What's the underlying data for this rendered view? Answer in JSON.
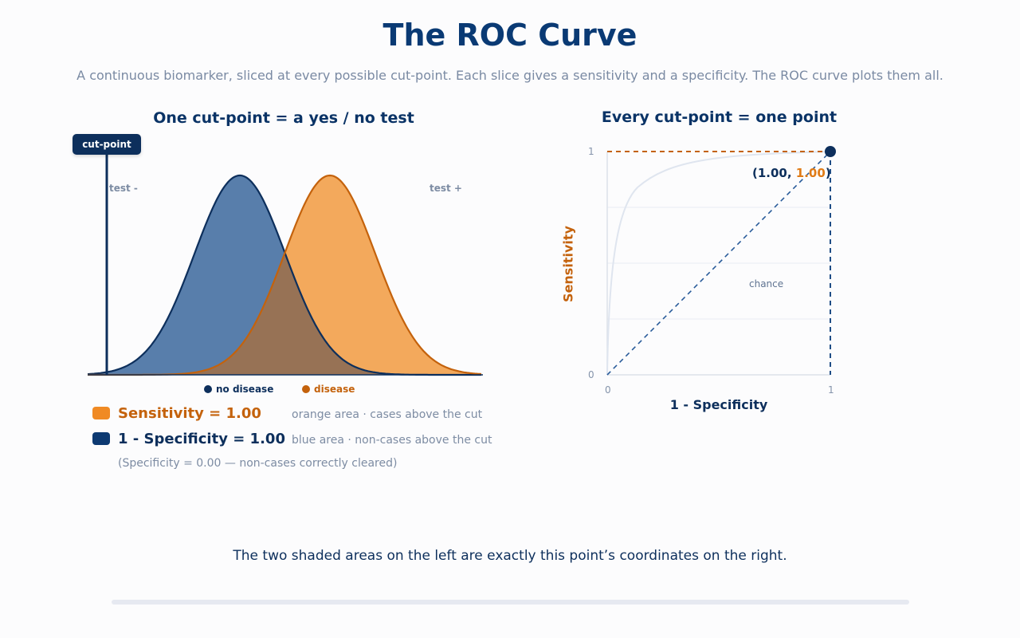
{
  "title": "The ROC Curve",
  "subtitle": "A continuous biomarker, sliced at every possible cut-point. Each slice gives a sensitivity and a specificity. The ROC curve plots them all.",
  "left_panel": {
    "title": "One cut-point  =  a yes / no test",
    "cut_tag": "cut-point",
    "label_negative": "test -",
    "label_positive": "test +",
    "legend": {
      "no_disease": "no disease",
      "disease": "disease"
    },
    "colors": {
      "no_disease": "#4a73a4",
      "disease": "#f2a04a",
      "accent_orange": "#c4620c",
      "accent_navy": "#0d2f5c"
    },
    "sensitivity_label": "Sensitivity = 1.00",
    "sensitivity_desc": "orange area  ·  cases above the cut",
    "one_minus_spec_label": "1 - Specificity = 1.00",
    "one_minus_spec_desc": "blue area  ·  non-cases above the cut",
    "specificity_note": "(Specificity = 0.00  —  non-cases correctly cleared)"
  },
  "right_panel": {
    "title": "Every cut-point  =  one point",
    "xlabel": "1 - Specificity",
    "ylabel": "Sensitivity",
    "tick_y_top": "1",
    "tick_y_bottom": "0",
    "tick_x_left": "0",
    "tick_x_right": "1",
    "chance_label": "chance",
    "point": {
      "x": 1.0,
      "y": 1.0,
      "x_label": "1.00",
      "y_label": "1.00"
    }
  },
  "caption": "The two shaded areas on the left are exactly this point’s coordinates on the right.",
  "chart_data": {
    "type": "scatter",
    "xlabel": "1 - Specificity",
    "ylabel": "Sensitivity",
    "xlim": [
      0,
      1
    ],
    "ylim": [
      0,
      1
    ],
    "points": [
      {
        "x": 1.0,
        "y": 1.0
      }
    ],
    "chance_line": [
      [
        0,
        0
      ],
      [
        1,
        1
      ]
    ]
  }
}
